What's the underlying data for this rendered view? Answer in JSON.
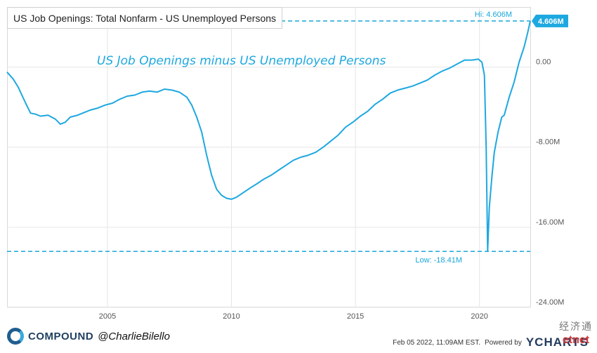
{
  "title": "US Job Openings: Total Nonfarm - US Unemployed Persons",
  "annotation": "US Job Openings minus US Unemployed Persons",
  "current_badge": "4.606M",
  "hi_label": "Hi: 4.606M",
  "low_label": "Low: -18.41M",
  "footer": {
    "brand": "COMPOUND",
    "handle": "@CharlieBilello",
    "timestamp": "Feb 05 2022, 11:09AM EST.",
    "powered_by": "Powered by",
    "ycharts": "YCHARTS"
  },
  "watermark": {
    "text": "经济通",
    "mark": "etnet"
  },
  "colors": {
    "line": "#1ea8e0",
    "reference": "#1aa7d8",
    "grid": "#e6e6e6",
    "badge": "#1ea8e0"
  },
  "chart_data": {
    "type": "line",
    "title": "US Job Openings: Total Nonfarm - US Unemployed Persons",
    "xlabel": "",
    "ylabel": "",
    "xlim": [
      2000.95,
      2022.05
    ],
    "ylim": [
      -24.0,
      6.0
    ],
    "x_ticks": [
      2005,
      2010,
      2015,
      2020
    ],
    "x_tick_labels": [
      "2005",
      "2010",
      "2015",
      "2020"
    ],
    "y_ticks": [
      0,
      -8,
      -16,
      -24
    ],
    "y_tick_labels": [
      "0.00",
      "-8.00M",
      "-16.00M",
      "-24.00M"
    ],
    "grid": true,
    "reference_lines": [
      {
        "label": "Hi: 4.606M",
        "value": 4.606
      },
      {
        "label": "Low: -18.41M",
        "value": -18.41
      }
    ],
    "series": [
      {
        "x": [
          2000.95,
          2001.2,
          2001.4,
          2001.7,
          2001.9,
          2002.1,
          2002.3,
          2002.6,
          2002.9,
          2003.1,
          2003.3,
          2003.5,
          2003.8,
          2004.0,
          2004.3,
          2004.6,
          2004.9,
          2005.2,
          2005.5,
          2005.8,
          2006.1,
          2006.4,
          2006.7,
          2007.0,
          2007.3,
          2007.6,
          2007.9,
          2008.2,
          2008.4,
          2008.6,
          2008.8,
          2009.0,
          2009.2,
          2009.4,
          2009.6,
          2009.8,
          2010.0,
          2010.2,
          2010.5,
          2010.8,
          2011.0,
          2011.3,
          2011.6,
          2011.9,
          2012.2,
          2012.5,
          2012.8,
          2013.1,
          2013.4,
          2013.7,
          2014.0,
          2014.3,
          2014.6,
          2014.9,
          2015.2,
          2015.5,
          2015.8,
          2016.1,
          2016.4,
          2016.7,
          2017.0,
          2017.3,
          2017.6,
          2017.9,
          2018.2,
          2018.5,
          2018.8,
          2019.1,
          2019.4,
          2019.7,
          2019.95,
          2020.1,
          2020.2,
          2020.27,
          2020.33,
          2020.4,
          2020.5,
          2020.6,
          2020.75,
          2020.9,
          2021.0,
          2021.2,
          2021.4,
          2021.6,
          2021.8,
          2021.95,
          2022.05
        ],
        "y": [
          -0.5,
          -1.2,
          -2.0,
          -3.6,
          -4.6,
          -4.7,
          -4.9,
          -4.8,
          -5.2,
          -5.7,
          -5.5,
          -5.0,
          -4.8,
          -4.6,
          -4.3,
          -4.1,
          -3.8,
          -3.6,
          -3.2,
          -2.9,
          -2.8,
          -2.5,
          -2.4,
          -2.5,
          -2.2,
          -2.3,
          -2.5,
          -3.0,
          -3.8,
          -5.0,
          -6.5,
          -8.8,
          -10.8,
          -12.2,
          -12.8,
          -13.1,
          -13.2,
          -13.0,
          -12.5,
          -12.0,
          -11.7,
          -11.2,
          -10.8,
          -10.3,
          -9.8,
          -9.3,
          -9.0,
          -8.8,
          -8.5,
          -8.0,
          -7.4,
          -6.8,
          -6.0,
          -5.5,
          -4.9,
          -4.4,
          -3.7,
          -3.2,
          -2.6,
          -2.3,
          -2.1,
          -1.9,
          -1.6,
          -1.3,
          -0.8,
          -0.4,
          -0.1,
          0.3,
          0.7,
          0.7,
          0.8,
          0.5,
          -0.8,
          -8.0,
          -18.4,
          -14.0,
          -11.0,
          -8.5,
          -6.5,
          -5.0,
          -4.8,
          -3.0,
          -1.5,
          0.5,
          2.0,
          3.5,
          4.606
        ]
      }
    ]
  }
}
